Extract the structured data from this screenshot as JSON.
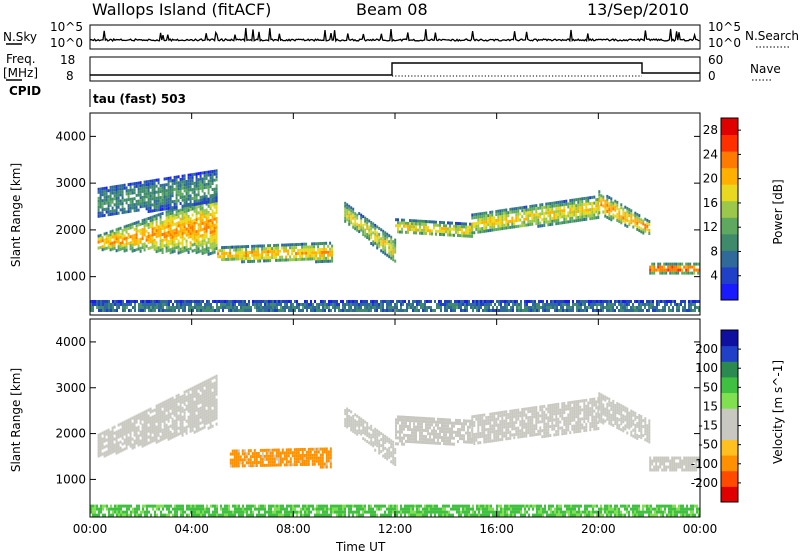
{
  "header": {
    "station": "Wallops Island (fitACF)",
    "beam": "Beam 08",
    "date": "13/Sep/2010"
  },
  "side_labels": {
    "nsky": "N.Sky",
    "freq": "Freq.",
    "freq_unit": "[MHz]",
    "cpid": "CPID",
    "nsearch": "N.Search",
    "nave": "Nave",
    "cpid_value": "tau (fast) 503"
  },
  "strip_ticks": {
    "nsky_left": [
      "10^5",
      "10^0"
    ],
    "nsky_right": [
      "10^5",
      "10^0"
    ],
    "freq_left": [
      "18",
      "8"
    ],
    "nave_right": [
      "60",
      "0"
    ]
  },
  "colors": {
    "power": [
      "#1a1aff",
      "#2040c8",
      "#2f6a9a",
      "#3f8a6a",
      "#5fa85f",
      "#9bc84a",
      "#e8d820",
      "#ffb000",
      "#ff7a00",
      "#ff3000",
      "#e00000"
    ],
    "velocity": [
      "#e00000",
      "#ff4a00",
      "#ff9000",
      "#ffc020",
      "#c8c8c0",
      "#c8c8c0",
      "#80e050",
      "#40c040",
      "#2a8a50",
      "#2040c8",
      "#1010a0"
    ]
  },
  "chart_data": [
    {
      "type": "heatmap",
      "title": "",
      "xlabel": "Time UT",
      "ylabel": "Slant Range [km]",
      "xlim": [
        "00:00",
        "24:00"
      ],
      "ylim": [
        180,
        4500
      ],
      "x_ticks": [
        "00:00",
        "04:00",
        "08:00",
        "12:00",
        "16:00",
        "20:00",
        "00:00"
      ],
      "y_ticks": [
        1000,
        2000,
        3000,
        4000
      ],
      "colorbar_label": "Power [dB]",
      "colorbar_ticks": [
        4,
        8,
        12,
        16,
        20,
        24,
        28
      ],
      "colorbar_range": [
        0,
        30
      ],
      "bands": [
        {
          "t": [
            0.3,
            5.0
          ],
          "r": [
            [
              1600,
              1900
            ],
            [
              1500,
              2800
            ]
          ],
          "value": 22
        },
        {
          "t": [
            0.3,
            5.0
          ],
          "r": [
            [
              2300,
              2900
            ],
            [
              2600,
              3300
            ]
          ],
          "value": 10
        },
        {
          "t": [
            5.0,
            9.5
          ],
          "r": [
            [
              1350,
              1650
            ],
            [
              1350,
              1750
            ]
          ],
          "value": 21
        },
        {
          "t": [
            10.0,
            12.0
          ],
          "r": [
            [
              2200,
              2600
            ],
            [
              1300,
              1800
            ]
          ],
          "value": 18
        },
        {
          "t": [
            12.0,
            15.0
          ],
          "r": [
            [
              1950,
              2250
            ],
            [
              1850,
              2150
            ]
          ],
          "value": 19
        },
        {
          "t": [
            15.0,
            20.0
          ],
          "r": [
            [
              1950,
              2350
            ],
            [
              2250,
              2750
            ]
          ],
          "value": 19
        },
        {
          "t": [
            20.0,
            22.0
          ],
          "r": [
            [
              2350,
              2850
            ],
            [
              1900,
              2200
            ]
          ],
          "value": 22
        },
        {
          "t": [
            22.0,
            24.0
          ],
          "r": [
            [
              1100,
              1300
            ],
            [
              1100,
              1300
            ]
          ],
          "value": 26
        },
        {
          "t": [
            0.0,
            24.0
          ],
          "r": [
            [
              250,
              500
            ],
            [
              250,
              500
            ]
          ],
          "value": 8
        }
      ]
    },
    {
      "type": "heatmap",
      "title": "",
      "xlabel": "Time UT",
      "ylabel": "Slant Range [km]",
      "xlim": [
        "00:00",
        "24:00"
      ],
      "ylim": [
        180,
        4500
      ],
      "x_ticks": [
        "00:00",
        "04:00",
        "08:00",
        "12:00",
        "16:00",
        "20:00",
        "00:00"
      ],
      "y_ticks": [
        1000,
        2000,
        3000,
        4000
      ],
      "colorbar_label": "Velocity [m s^-1]",
      "colorbar_ticks": [
        -200,
        -100,
        -50,
        -15,
        15,
        50,
        100,
        200
      ],
      "bands": [
        {
          "t": [
            0.3,
            5.0
          ],
          "r": [
            [
              1500,
              2000
            ],
            [
              2200,
              3300
            ]
          ],
          "value": 0
        },
        {
          "t": [
            5.5,
            9.5
          ],
          "r": [
            [
              1300,
              1650
            ],
            [
              1300,
              1700
            ]
          ],
          "value": -30
        },
        {
          "t": [
            10.0,
            12.0
          ],
          "r": [
            [
              2200,
              2600
            ],
            [
              1300,
              1800
            ]
          ],
          "value": 0
        },
        {
          "t": [
            12.0,
            15.0
          ],
          "r": [
            [
              1800,
              2400
            ],
            [
              1800,
              2300
            ]
          ],
          "value": 0
        },
        {
          "t": [
            15.0,
            20.0
          ],
          "r": [
            [
              1800,
              2400
            ],
            [
              2100,
              2800
            ]
          ],
          "value": 0
        },
        {
          "t": [
            20.0,
            22.0
          ],
          "r": [
            [
              2300,
              2900
            ],
            [
              1800,
              2300
            ]
          ],
          "value": 0
        },
        {
          "t": [
            22.0,
            24.0
          ],
          "r": [
            [
              1200,
              1500
            ],
            [
              1200,
              1500
            ]
          ],
          "value": 0
        },
        {
          "t": [
            0.0,
            24.0
          ],
          "r": [
            [
              250,
              450
            ],
            [
              250,
              450
            ]
          ],
          "value": 60
        }
      ]
    }
  ]
}
